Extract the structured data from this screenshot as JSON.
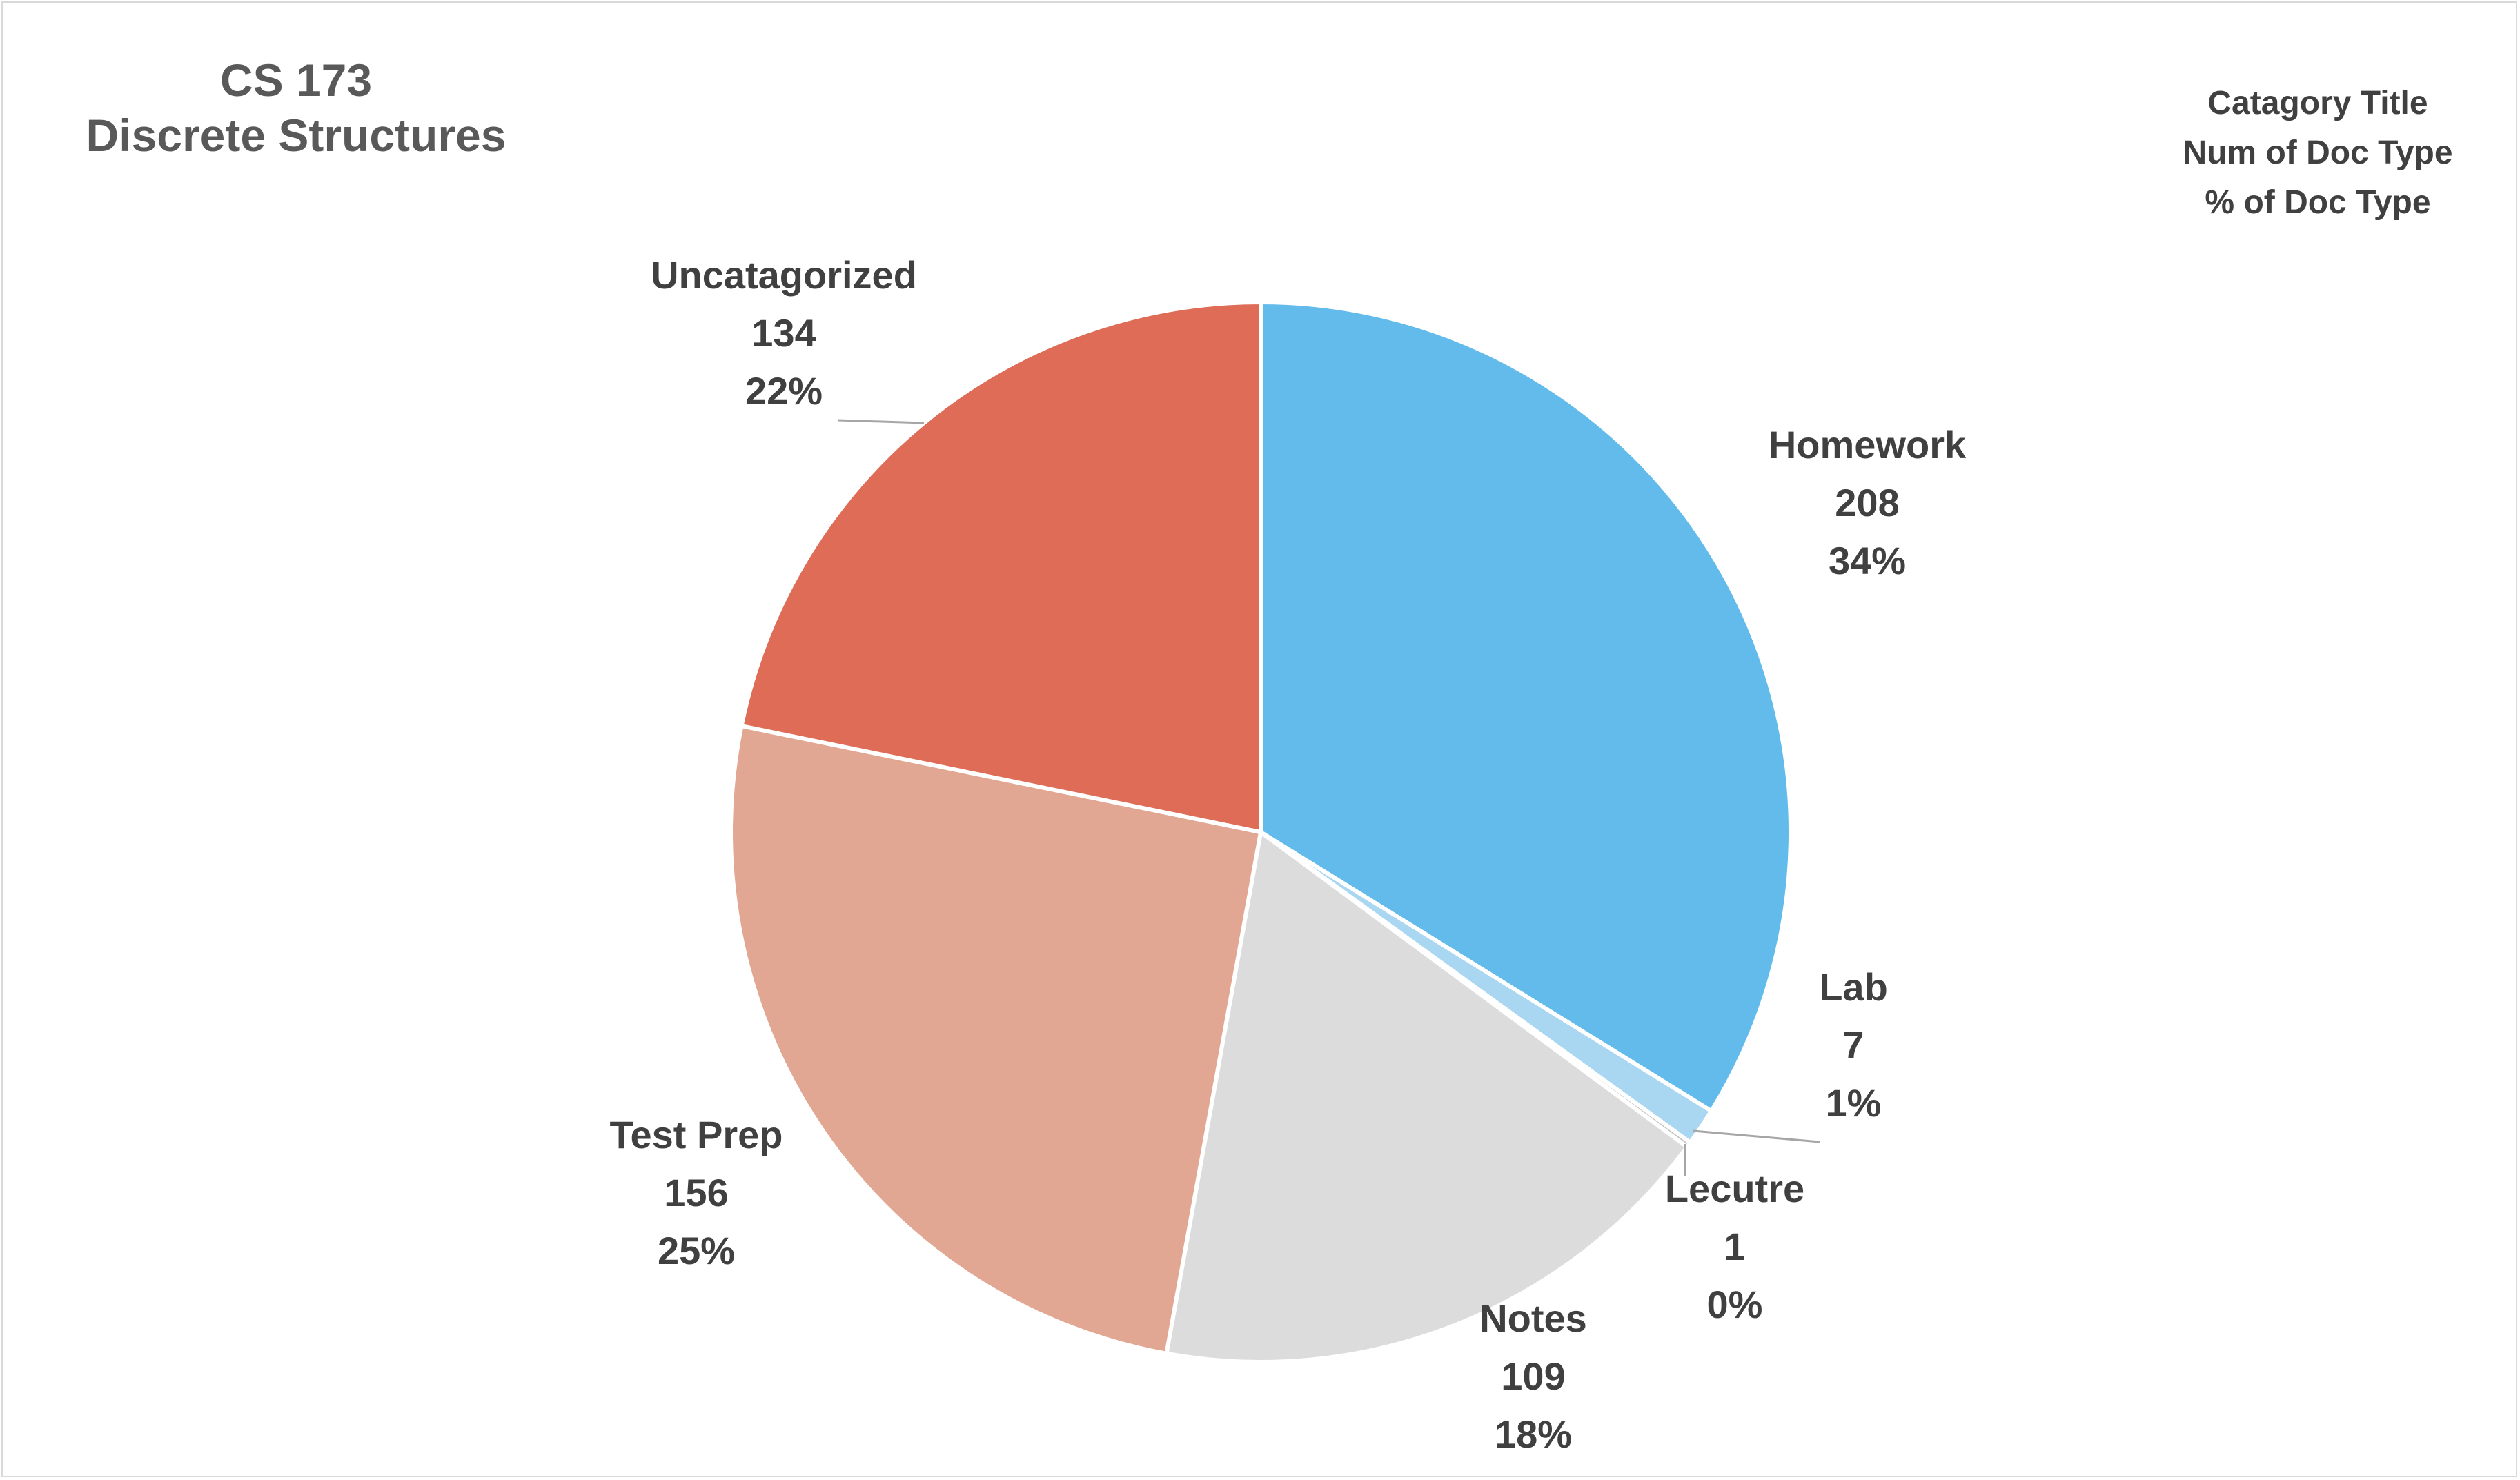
{
  "chart_data": {
    "type": "pie",
    "title": "CS 173",
    "subtitle": "Discrete Structures",
    "legend_note": [
      "Catagory Title",
      "Num of Doc Type",
      "% of Doc Type"
    ],
    "slices": [
      {
        "name": "Homework",
        "value": 208,
        "percent": "34%",
        "color": "#62bbea"
      },
      {
        "name": "Lab",
        "value": 7,
        "percent": "1%",
        "color": "#a9d6f0"
      },
      {
        "name": "Lecutre",
        "value": 1,
        "percent": "0%",
        "color": "#bfbfbf"
      },
      {
        "name": "Notes",
        "value": 109,
        "percent": "18%",
        "color": "#dcdcdc"
      },
      {
        "name": "Test Prep",
        "value": 156,
        "percent": "25%",
        "color": "#e2a793"
      },
      {
        "name": "Uncatagorized",
        "value": 134,
        "percent": "22%",
        "color": "#de6c56"
      }
    ],
    "label_color": "#404040"
  }
}
